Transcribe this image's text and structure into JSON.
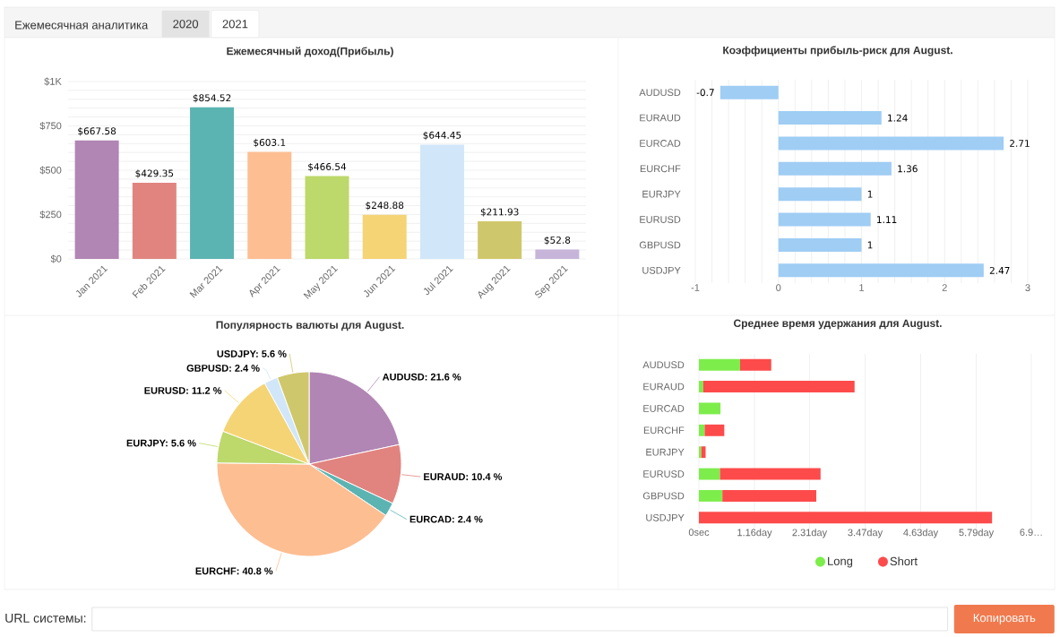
{
  "chart_data": [
    {
      "type": "other",
      "annotations": [
        "Ежемесячная аналитика",
        "2020",
        "2021"
      ]
    },
    {
      "type": "bar",
      "title": "Ежемесячный доход(Прибыль)",
      "categories": [
        "Jan 2021",
        "Feb 2021",
        "Mar 2021",
        "Apr 2021",
        "May 2021",
        "Jun 2021",
        "Jul 2021",
        "Aug 2021",
        "Sep 2021"
      ],
      "values": [
        667.58,
        429.35,
        854.52,
        603.1,
        466.54,
        248.88,
        644.45,
        211.93,
        52.8
      ],
      "colors": [
        "#b185b4",
        "#e1847f",
        "#5bb4b2",
        "#fdbe92",
        "#bdd86b",
        "#f5d475",
        "#d1e6f9",
        "#cfc76b",
        "#c6b5d9"
      ],
      "value_labels": [
        "$667.58",
        "$429.35",
        "$854.52",
        "$603.1",
        "$466.54",
        "$248.88",
        "$644.45",
        "$211.93",
        "$52.8"
      ],
      "ylim": [
        0,
        1000
      ],
      "yticks": [
        {
          "value": 0,
          "label": "$0"
        },
        {
          "value": 50,
          "label": null
        },
        {
          "value": 100,
          "label": null
        },
        {
          "value": 150,
          "label": null
        },
        {
          "value": 200,
          "label": null
        },
        {
          "value": 250,
          "label": "$250"
        },
        {
          "value": 300,
          "label": null
        },
        {
          "value": 350,
          "label": null
        },
        {
          "value": 400,
          "label": null
        },
        {
          "value": 450,
          "label": null
        },
        {
          "value": 500,
          "label": "$500"
        },
        {
          "value": 550,
          "label": null
        },
        {
          "value": 600,
          "label": null
        },
        {
          "value": 650,
          "label": null
        },
        {
          "value": 700,
          "label": null
        },
        {
          "value": 750,
          "label": "$750"
        },
        {
          "value": 800,
          "label": null
        },
        {
          "value": 850,
          "label": null
        },
        {
          "value": 900,
          "label": null
        },
        {
          "value": 950,
          "label": null
        },
        {
          "value": 1000,
          "label": "$1K"
        }
      ],
      "grid": "y"
    },
    {
      "type": "bar",
      "orientation": "horizontal",
      "title": "Коэффициенты прибыль-риск для August.",
      "categories": [
        "AUDUSD",
        "EURAUD",
        "EURCAD",
        "EURCHF",
        "EURJPY",
        "EURUSD",
        "GBPUSD",
        "USDJPY"
      ],
      "values": [
        -0.7,
        1.24,
        2.71,
        1.36,
        1,
        1.11,
        1,
        2.47
      ],
      "color": "#9fcdf4",
      "data_labels": true,
      "xlim": [
        -1,
        3
      ],
      "xticks": [
        -1,
        {
          "value": -0.8,
          "label": null
        },
        {
          "value": -0.6,
          "label": null
        },
        {
          "value": -0.4,
          "label": null
        },
        {
          "value": -0.2,
          "label": null
        },
        0,
        {
          "value": 0.2,
          "label": null
        },
        {
          "value": 0.4,
          "label": null
        },
        {
          "value": 0.6,
          "label": null
        },
        {
          "value": 0.8,
          "label": null
        },
        1,
        {
          "value": 1.2,
          "label": null
        },
        {
          "value": 1.4,
          "label": null
        },
        {
          "value": 1.6,
          "label": null
        },
        {
          "value": 1.8,
          "label": null
        },
        2,
        {
          "value": 2.2,
          "label": null
        },
        {
          "value": 2.4,
          "label": null
        },
        {
          "value": 2.6,
          "label": null
        },
        {
          "value": 2.8,
          "label": null
        },
        3
      ],
      "grid": "x"
    },
    {
      "type": "pie",
      "title": "Популярность валюты для August.",
      "categories": [
        "AUDUSD: 21.6 %",
        "EURAUD: 10.4 %",
        "EURCAD: 2.4 %",
        "EURCHF: 40.8 %",
        "EURJPY: 5.6 %",
        "EURUSD: 11.2 %",
        "GBPUSD: 2.4 %",
        "USDJPY: 5.6 %"
      ],
      "values": [
        21.6,
        10.4,
        2.4,
        40.8,
        5.6,
        11.2,
        2.4,
        5.6
      ],
      "colors": [
        "#b185b4",
        "#e1847f",
        "#5bb4b2",
        "#fdbe92",
        "#bdd86b",
        "#f5d475",
        "#d1e6f9",
        "#cfc76b"
      ]
    },
    {
      "type": "bar",
      "orientation": "horizontal",
      "stacked": true,
      "title": "Среднее время удержания для August.",
      "categories": [
        "AUDUSD",
        "EURAUD",
        "EURCAD",
        "EURCHF",
        "EURJPY",
        "EURUSD",
        "GBPUSD",
        "USDJPY"
      ],
      "series": [
        {
          "name": "Long",
          "color": "#7ded4c",
          "values": [
            0.86,
            0.09,
            0.45,
            0.12,
            0.05,
            0.44,
            0.49,
            null
          ]
        },
        {
          "name": "Short",
          "color": "#fd4b4b",
          "values": [
            0.65,
            3.16,
            null,
            0.41,
            0.09,
            2.1,
            1.96,
            6.12
          ]
        }
      ],
      "xlim": [
        0,
        6.94
      ],
      "xticks": [
        {
          "value": 0,
          "label": "0sec"
        },
        {
          "value": 1.16,
          "label": "1.16day"
        },
        {
          "value": 2.31,
          "label": "2.31day"
        },
        {
          "value": 3.47,
          "label": "3.47day"
        },
        {
          "value": 4.63,
          "label": "4.63day"
        },
        {
          "value": 5.79,
          "label": "5.79day"
        },
        {
          "value": 6.94,
          "label": "6.9…"
        }
      ],
      "grid": "x",
      "legend": "bottom"
    },
    {
      "type": "other",
      "annotations": [
        "URL системы:",
        "Копировать"
      ]
    }
  ]
}
